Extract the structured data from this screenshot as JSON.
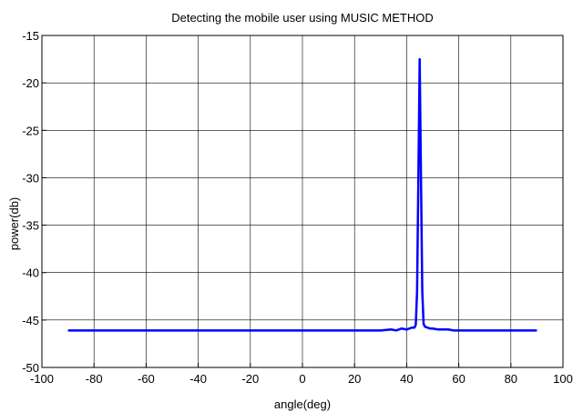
{
  "chart_data": {
    "type": "line",
    "title": "Detecting the mobile user using MUSIC METHOD",
    "xlabel": "angle(deg)",
    "ylabel": "power(db)",
    "xlim": [
      -100,
      100
    ],
    "ylim": [
      -50,
      -15
    ],
    "xticks": [
      -100,
      -80,
      -60,
      -40,
      -20,
      0,
      20,
      40,
      60,
      80,
      100
    ],
    "yticks": [
      -15,
      -20,
      -25,
      -30,
      -35,
      -40,
      -45,
      -50
    ],
    "grid": true,
    "line_color": "#0000ff",
    "series": [
      {
        "x": [
          -90,
          30,
          34,
          36,
          38,
          40,
          41,
          42,
          43,
          43.5,
          44,
          44.5,
          45,
          45.5,
          46,
          46.5,
          47,
          48,
          49,
          50,
          52,
          54,
          56,
          58,
          60,
          90
        ],
        "y": [
          -46.1,
          -46.1,
          -46.0,
          -46.1,
          -45.9,
          -46.0,
          -45.9,
          -45.8,
          -45.8,
          -45.5,
          -42,
          -30,
          -17.5,
          -30,
          -42,
          -45.4,
          -45.7,
          -45.8,
          -45.9,
          -45.9,
          -46.0,
          -46.0,
          -46.0,
          -46.1,
          -46.1,
          -46.1
        ]
      }
    ]
  }
}
